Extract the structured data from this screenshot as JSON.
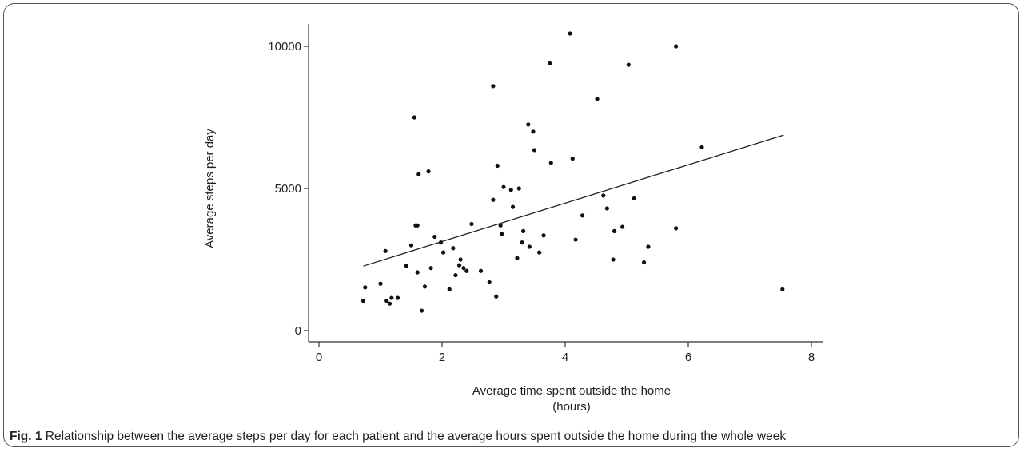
{
  "figure": {
    "caption_label": "Fig. 1",
    "caption_text": " Relationship between the average steps per day for each patient and the average hours spent outside the home during the whole week"
  },
  "chart_data": {
    "type": "scatter",
    "xlabel_line1": "Average time spent outside the home",
    "xlabel_line2": "(hours)",
    "ylabel": "Average steps per day",
    "xlim": [
      -0.2,
      8.4
    ],
    "ylim": [
      -300,
      10800
    ],
    "x_ticks": [
      0,
      2,
      4,
      6,
      8
    ],
    "y_ticks": [
      0,
      5000,
      10000
    ],
    "grid": false,
    "fit_line": {
      "x": [
        0.72,
        7.55
      ],
      "y": [
        2270,
        6880
      ]
    },
    "points": [
      {
        "x": 0.72,
        "y": 1050
      },
      {
        "x": 0.75,
        "y": 1520
      },
      {
        "x": 1.0,
        "y": 1650
      },
      {
        "x": 1.08,
        "y": 2800
      },
      {
        "x": 1.1,
        "y": 1050
      },
      {
        "x": 1.15,
        "y": 950
      },
      {
        "x": 1.18,
        "y": 1150
      },
      {
        "x": 1.28,
        "y": 1150
      },
      {
        "x": 1.42,
        "y": 2280
      },
      {
        "x": 1.5,
        "y": 3000
      },
      {
        "x": 1.55,
        "y": 7500
      },
      {
        "x": 1.57,
        "y": 3700
      },
      {
        "x": 1.6,
        "y": 3700
      },
      {
        "x": 1.6,
        "y": 2050
      },
      {
        "x": 1.62,
        "y": 5500
      },
      {
        "x": 1.67,
        "y": 700
      },
      {
        "x": 1.72,
        "y": 1550
      },
      {
        "x": 1.78,
        "y": 5600
      },
      {
        "x": 1.82,
        "y": 2200
      },
      {
        "x": 1.88,
        "y": 3300
      },
      {
        "x": 1.98,
        "y": 3100
      },
      {
        "x": 2.02,
        "y": 2750
      },
      {
        "x": 2.12,
        "y": 1450
      },
      {
        "x": 2.18,
        "y": 2900
      },
      {
        "x": 2.22,
        "y": 1950
      },
      {
        "x": 2.28,
        "y": 2300
      },
      {
        "x": 2.3,
        "y": 2500
      },
      {
        "x": 2.35,
        "y": 2200
      },
      {
        "x": 2.4,
        "y": 2100
      },
      {
        "x": 2.48,
        "y": 3750
      },
      {
        "x": 2.63,
        "y": 2100
      },
      {
        "x": 2.77,
        "y": 1700
      },
      {
        "x": 2.83,
        "y": 8600
      },
      {
        "x": 2.83,
        "y": 4600
      },
      {
        "x": 2.88,
        "y": 1200
      },
      {
        "x": 2.9,
        "y": 5800
      },
      {
        "x": 2.95,
        "y": 3700
      },
      {
        "x": 2.97,
        "y": 3400
      },
      {
        "x": 3.0,
        "y": 5050
      },
      {
        "x": 3.12,
        "y": 4950
      },
      {
        "x": 3.15,
        "y": 4350
      },
      {
        "x": 3.22,
        "y": 2550
      },
      {
        "x": 3.25,
        "y": 5000
      },
      {
        "x": 3.3,
        "y": 3100
      },
      {
        "x": 3.32,
        "y": 3500
      },
      {
        "x": 3.4,
        "y": 7250
      },
      {
        "x": 3.42,
        "y": 2950
      },
      {
        "x": 3.48,
        "y": 7000
      },
      {
        "x": 3.5,
        "y": 6350
      },
      {
        "x": 3.58,
        "y": 2750
      },
      {
        "x": 3.65,
        "y": 3350
      },
      {
        "x": 3.75,
        "y": 9400
      },
      {
        "x": 3.77,
        "y": 5900
      },
      {
        "x": 4.08,
        "y": 10450
      },
      {
        "x": 4.12,
        "y": 6050
      },
      {
        "x": 4.17,
        "y": 3200
      },
      {
        "x": 4.28,
        "y": 4050
      },
      {
        "x": 4.52,
        "y": 8150
      },
      {
        "x": 4.62,
        "y": 4750
      },
      {
        "x": 4.68,
        "y": 4300
      },
      {
        "x": 4.78,
        "y": 2500
      },
      {
        "x": 4.8,
        "y": 3500
      },
      {
        "x": 4.93,
        "y": 3650
      },
      {
        "x": 5.03,
        "y": 9350
      },
      {
        "x": 5.12,
        "y": 4650
      },
      {
        "x": 5.28,
        "y": 2400
      },
      {
        "x": 5.35,
        "y": 2950
      },
      {
        "x": 5.8,
        "y": 10000
      },
      {
        "x": 5.8,
        "y": 3600
      },
      {
        "x": 6.22,
        "y": 6450
      },
      {
        "x": 7.53,
        "y": 1450
      }
    ]
  }
}
